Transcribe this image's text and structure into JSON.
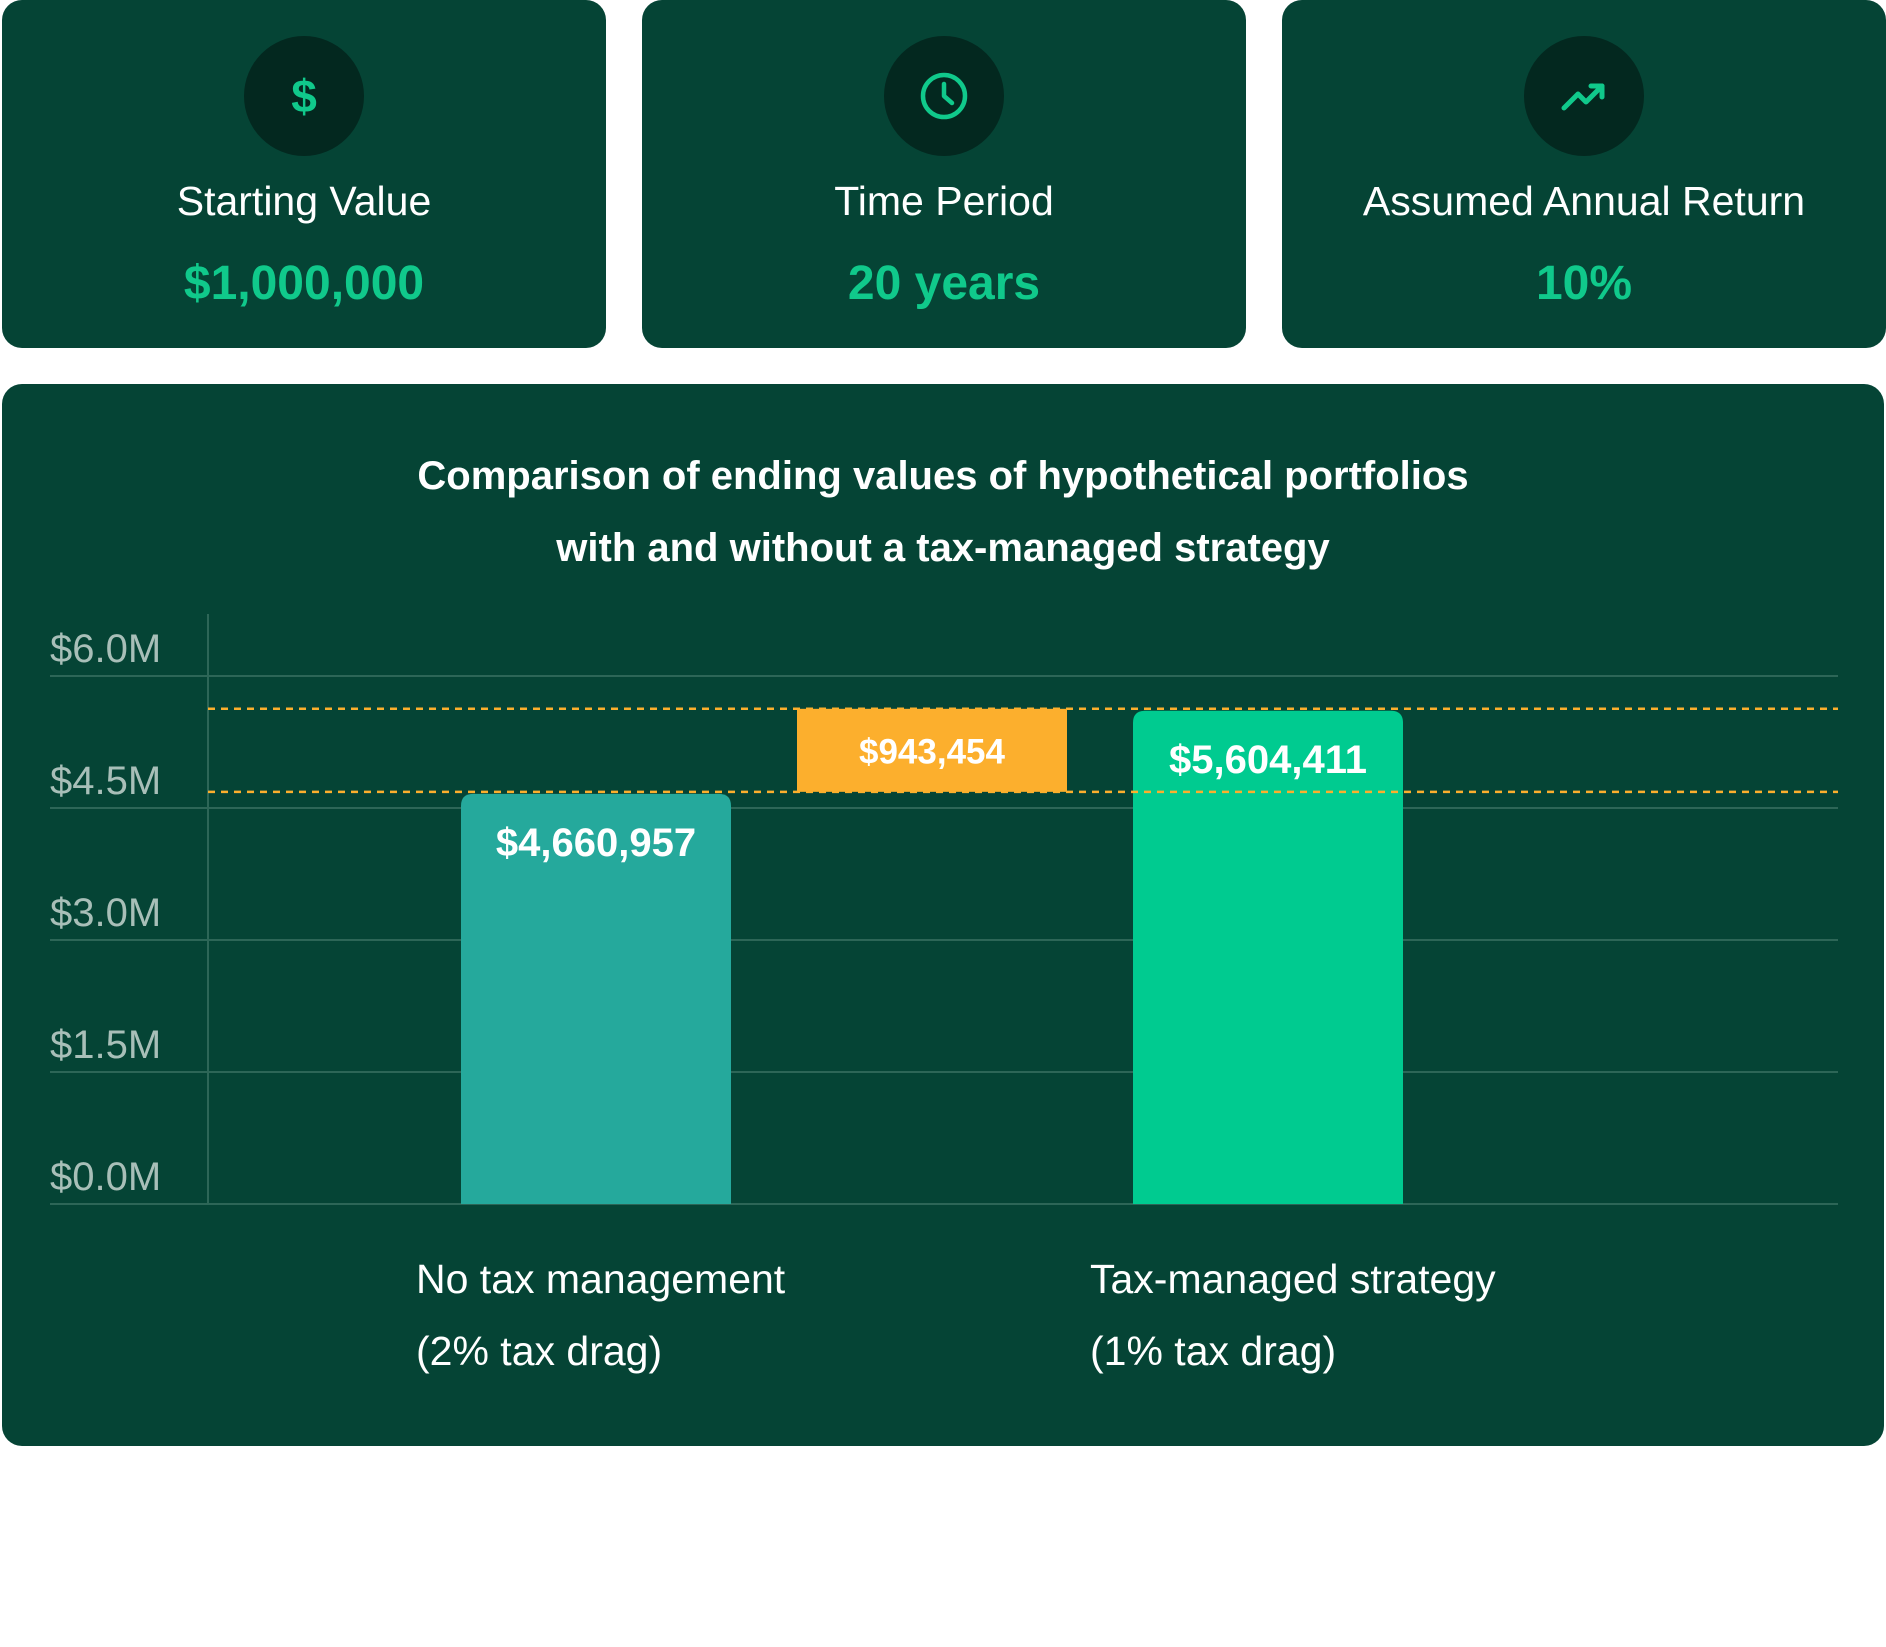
{
  "cards": [
    {
      "icon": "dollar-icon",
      "label": "Starting Value",
      "value": "$1,000,000"
    },
    {
      "icon": "clock-icon",
      "label": "Time Period",
      "value": "20 years"
    },
    {
      "icon": "trending-up-icon",
      "label": "Assumed Annual Return",
      "value": "10%"
    }
  ],
  "colors": {
    "card_bg": "#054435",
    "icon_bg": "#03281f",
    "accent_green": "#10c98b",
    "bar_teal": "#25a99c",
    "bar_green": "#00cb90",
    "difference_orange": "#fcaf2d",
    "gridline": "#2d6657",
    "axis_text": "#a8bfb8"
  },
  "chart_data": {
    "type": "bar",
    "title_lines": [
      "Comparison of ending values of hypothetical portfolios",
      "with and without a tax-managed strategy"
    ],
    "categories": [
      {
        "line1": "No tax management",
        "line2": "(2% tax drag)"
      },
      {
        "line1": "Tax-managed strategy",
        "line2": "(1% tax drag)"
      }
    ],
    "values": [
      4660957,
      5604411
    ],
    "value_labels": [
      "$4,660,957",
      "$5,604,411"
    ],
    "difference": {
      "value": 943454,
      "label": "$943,454"
    },
    "y_ticks": [
      {
        "value": 0,
        "label": "$0.0M"
      },
      {
        "value": 1500000,
        "label": "$1.5M"
      },
      {
        "value": 3000000,
        "label": "$3.0M"
      },
      {
        "value": 4500000,
        "label": "$4.5M"
      },
      {
        "value": 6000000,
        "label": "$6.0M"
      }
    ],
    "ylim": [
      0,
      6000000
    ],
    "grid": true,
    "legend": "none"
  }
}
